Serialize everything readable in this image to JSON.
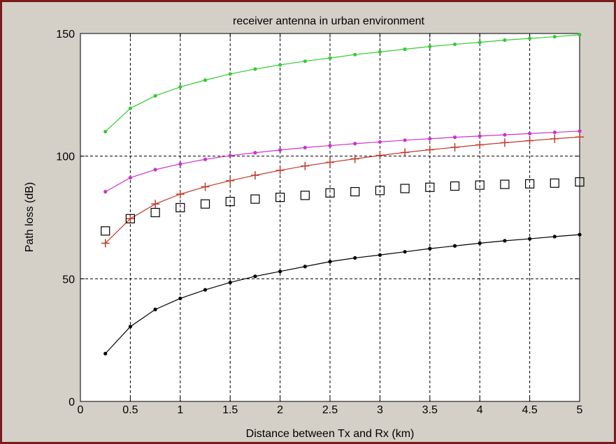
{
  "chart_data": {
    "type": "line",
    "title": "receiver antenna in urban environment",
    "xlabel": "Distance between Tx and Rx (km)",
    "ylabel": "Path loss (dB)",
    "xlim": [
      0,
      5
    ],
    "ylim": [
      0,
      150
    ],
    "xticks": [
      0,
      0.5,
      1,
      1.5,
      2,
      2.5,
      3,
      3.5,
      4,
      4.5,
      5
    ],
    "xtick_labels": [
      "0",
      "0.5",
      "1",
      "1.5",
      "2",
      "2.5",
      "3",
      "3.5",
      "4",
      "4.5",
      "5"
    ],
    "yticks": [
      0,
      50,
      100,
      150
    ],
    "ytick_labels": [
      "0",
      "50",
      "100",
      "150"
    ],
    "grid": true,
    "x": [
      0.25,
      0.5,
      0.75,
      1,
      1.25,
      1.5,
      1.75,
      2,
      2.25,
      2.5,
      2.75,
      3,
      3.25,
      3.5,
      3.75,
      4,
      4.25,
      4.5,
      4.75,
      5
    ],
    "series": [
      {
        "color": "#33cc33",
        "marker": "dot",
        "line": true,
        "values": [
          110,
          119.5,
          124.6,
          128.2,
          131,
          133.5,
          135.5,
          137.2,
          138.7,
          140,
          141.4,
          142.5,
          143.6,
          144.7,
          145.6,
          146.4,
          147.3,
          148,
          148.7,
          149.5
        ]
      },
      {
        "color": "#cc33cc",
        "marker": "dot",
        "line": true,
        "values": [
          85.5,
          91.2,
          94.5,
          96.8,
          98.7,
          100.2,
          101.4,
          102.5,
          103.5,
          104.3,
          105.1,
          105.8,
          106.5,
          107.1,
          107.7,
          108.2,
          108.7,
          109.2,
          109.7,
          110.2
        ]
      },
      {
        "color": "#c0392b",
        "marker": "plus",
        "line": true,
        "values": [
          64.5,
          74.5,
          80.5,
          84.5,
          87.5,
          90,
          92.2,
          94.2,
          96,
          97.5,
          98.9,
          100.3,
          101.5,
          102.6,
          103.6,
          104.6,
          105.5,
          106.3,
          107.1,
          107.8
        ]
      },
      {
        "color": "#000000",
        "marker": "square",
        "line": false,
        "values": [
          69.5,
          74.5,
          77,
          79,
          80.5,
          81.5,
          82.5,
          83.2,
          84,
          85,
          85.5,
          86,
          86.8,
          87.3,
          87.8,
          88.2,
          88.5,
          88.7,
          89,
          89.5
        ]
      },
      {
        "color": "#000000",
        "marker": "dot",
        "line": true,
        "values": [
          19.5,
          30.5,
          37.5,
          42,
          45.5,
          48.5,
          51,
          53,
          55,
          57,
          58.5,
          59.7,
          61,
          62.3,
          63.4,
          64.5,
          65.5,
          66.3,
          67.2,
          68
        ]
      }
    ]
  }
}
